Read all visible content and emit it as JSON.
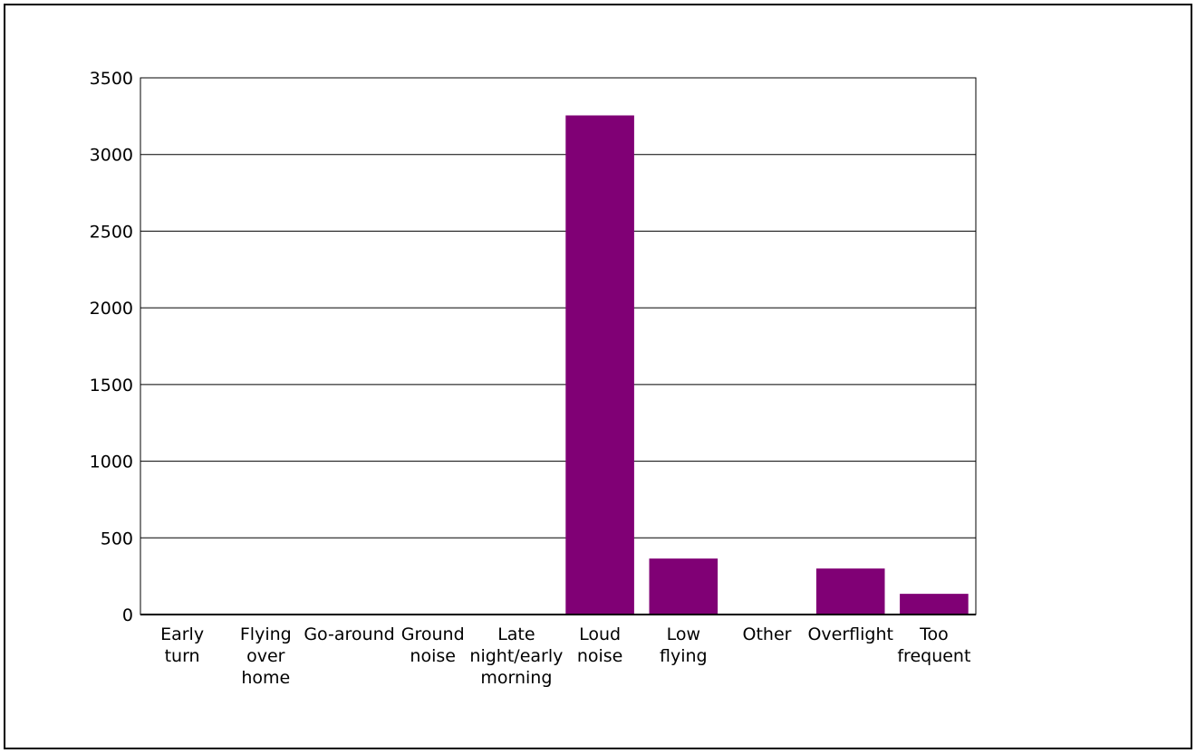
{
  "chart_data": {
    "type": "bar",
    "categories": [
      [
        "Early",
        "turn"
      ],
      [
        "Flying",
        "over",
        "home"
      ],
      [
        "Go-around"
      ],
      [
        "Ground",
        "noise"
      ],
      [
        "Late",
        "night/early",
        "morning"
      ],
      [
        "Loud",
        "noise"
      ],
      [
        "Low",
        "flying"
      ],
      [
        "Other"
      ],
      [
        "Overflight"
      ],
      [
        "Too",
        "frequent"
      ]
    ],
    "values": [
      2,
      1,
      1,
      1,
      3,
      3255,
      365,
      2,
      300,
      135
    ],
    "ylim": [
      0,
      3500
    ],
    "yticks": [
      0,
      500,
      1000,
      1500,
      2000,
      2500,
      3000,
      3500
    ],
    "grid": true,
    "legend": "none",
    "colors": {
      "bar": "#800075",
      "grid": "#000000",
      "axis": "#000000"
    }
  }
}
